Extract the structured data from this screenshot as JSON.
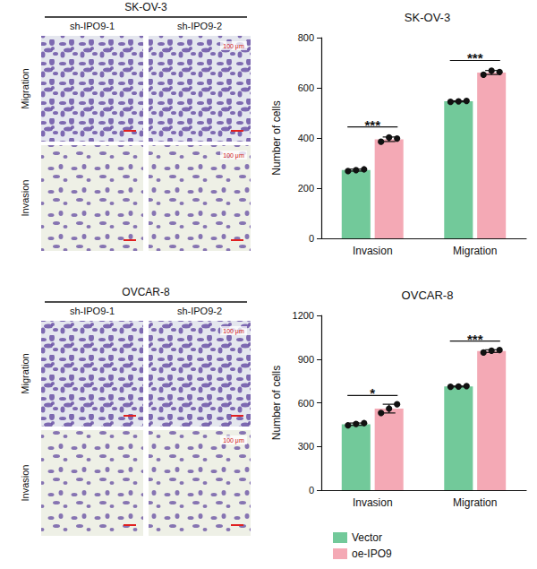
{
  "image_panels": [
    {
      "title": "SK-OV-3",
      "columns": [
        "sh-IPO9-1",
        "sh-IPO9-2"
      ],
      "rows": [
        "Migration",
        "Invasion"
      ],
      "scale_bar": "100 μm"
    },
    {
      "title": "OVCAR-8",
      "columns": [
        "sh-IPO9-1",
        "sh-IPO9-2"
      ],
      "rows": [
        "Migration",
        "Invasion"
      ],
      "scale_bar": "100 μm"
    }
  ],
  "chart_data": [
    {
      "type": "bar",
      "title": "SK-OV-3",
      "y_label": "Number of cells",
      "categories": [
        "Invasion",
        "Migration"
      ],
      "ylim": [
        0,
        800
      ],
      "yticks": [
        0,
        200,
        400,
        600,
        800
      ],
      "grid": false,
      "series": [
        {
          "name": "Vector",
          "color": "#72c99a",
          "values": [
            272,
            546
          ],
          "errors": [
            4,
            2
          ],
          "points": [
            [
              268,
              272,
              275
            ],
            [
              544,
              546,
              548
            ]
          ]
        },
        {
          "name": "oe-IPO9",
          "color": "#f4a9b5",
          "values": [
            395,
            661
          ],
          "errors": [
            9,
            8
          ],
          "points": [
            [
              385,
              402,
              398
            ],
            [
              652,
              668,
              663
            ]
          ]
        }
      ],
      "significance": [
        "***",
        "***"
      ]
    },
    {
      "type": "bar",
      "title": "OVCAR-8",
      "y_label": "Number of cells",
      "categories": [
        "Invasion",
        "Migration"
      ],
      "ylim": [
        0,
        1200
      ],
      "yticks": [
        0,
        300,
        600,
        900,
        1200
      ],
      "grid": false,
      "legend": "bottom",
      "series": [
        {
          "name": "Vector",
          "color": "#72c99a",
          "values": [
            453,
            712
          ],
          "errors": [
            8,
            3
          ],
          "points": [
            [
              445,
              455,
              460
            ],
            [
              710,
              712,
              715
            ]
          ]
        },
        {
          "name": "oe-IPO9",
          "color": "#f4a9b5",
          "values": [
            560,
            955
          ],
          "errors": [
            30,
            9
          ],
          "points": [
            [
              530,
              560,
              590
            ],
            [
              945,
              958,
              962
            ]
          ]
        }
      ],
      "significance": [
        "*",
        "***"
      ]
    }
  ]
}
